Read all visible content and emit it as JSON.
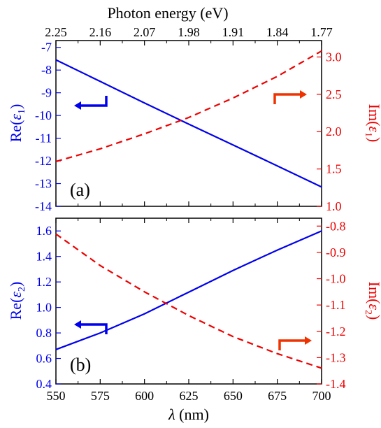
{
  "chart_data": [
    {
      "type": "line",
      "panel_label": "(a)",
      "xlabel": "",
      "top_axis": {
        "label": "Photon energy (eV)",
        "tick_labels": [
          "2.25",
          "2.16",
          "2.07",
          "1.98",
          "1.91",
          "1.84",
          "1.77"
        ]
      },
      "x_ticks": [
        550,
        575,
        600,
        625,
        650,
        675,
        700
      ],
      "xlim": [
        550,
        700
      ],
      "left_axis": {
        "label_base": "Re(",
        "label_symbol": "ε",
        "label_sub": "1",
        "label_close": ")",
        "color": "#0000ee",
        "ylim": [
          -14,
          -6.7
        ],
        "ticks": [
          -14,
          -13,
          -12,
          -11,
          -10,
          -9,
          -8,
          -7
        ],
        "tick_labels": [
          "-14",
          "-13",
          "-12",
          "-11",
          "-10",
          "-9",
          "-8",
          "-7"
        ]
      },
      "right_axis": {
        "label_base": "Im(",
        "label_symbol": "ε",
        "label_sub": "1",
        "label_close": ")",
        "color": "#ee0000",
        "ylim": [
          1.0,
          3.22
        ],
        "ticks": [
          1.0,
          1.5,
          2.0,
          2.5,
          3.0
        ],
        "tick_labels": [
          "1.0",
          "1.5",
          "2.0",
          "2.5",
          "3.0"
        ]
      },
      "series": [
        {
          "axis": "left",
          "color": "#0000ee",
          "style": "solid",
          "x": [
            550,
            575,
            600,
            625,
            650,
            675,
            700
          ],
          "y": [
            -7.55,
            -8.5,
            -9.45,
            -10.38,
            -11.3,
            -12.22,
            -13.15
          ]
        },
        {
          "axis": "right",
          "color": "#ee0000",
          "style": "dashed",
          "x": [
            550,
            575,
            600,
            625,
            650,
            675,
            700
          ],
          "y": [
            1.6,
            1.77,
            1.97,
            2.19,
            2.45,
            2.74,
            3.08
          ]
        }
      ],
      "arrows": [
        {
          "color": "#0000ee",
          "direction": "left"
        },
        {
          "color": "#ee3300",
          "direction": "right"
        }
      ]
    },
    {
      "type": "line",
      "panel_label": "(b)",
      "xlabel_symbol": "λ",
      "xlabel_unit": " (nm)",
      "x_ticks": [
        550,
        575,
        600,
        625,
        650,
        675,
        700
      ],
      "x_tick_labels": [
        "550",
        "575",
        "600",
        "625",
        "650",
        "675",
        "700"
      ],
      "xlim": [
        550,
        700
      ],
      "left_axis": {
        "label_base": "Re(",
        "label_symbol": "ε",
        "label_sub": "2",
        "label_close": ")",
        "color": "#0000ee",
        "ylim": [
          0.4,
          1.7
        ],
        "ticks": [
          0.4,
          0.6,
          0.8,
          1.0,
          1.2,
          1.4,
          1.6
        ],
        "tick_labels": [
          "0.4",
          "0.6",
          "0.8",
          "1.0",
          "1.2",
          "1.4",
          "1.6"
        ]
      },
      "right_axis": {
        "label_base": "Im(",
        "label_symbol": "ε",
        "label_sub": "2",
        "label_close": ")",
        "color": "#ee0000",
        "ylim": [
          -1.4,
          -0.77
        ],
        "ticks": [
          -1.4,
          -1.3,
          -1.2,
          -1.1,
          -1.0,
          -0.9,
          -0.8
        ],
        "tick_labels": [
          "-1.4",
          "-1.3",
          "-1.2",
          "-1.1",
          "-1.0",
          "-0.9",
          "-0.8"
        ]
      },
      "series": [
        {
          "axis": "left",
          "color": "#0000ee",
          "style": "solid",
          "x": [
            550,
            575,
            600,
            625,
            650,
            675,
            700
          ],
          "y": [
            0.67,
            0.8,
            0.95,
            1.12,
            1.29,
            1.45,
            1.6
          ]
        },
        {
          "axis": "right",
          "color": "#ee0000",
          "style": "dashed",
          "x": [
            550,
            575,
            600,
            625,
            650,
            675,
            700
          ],
          "y": [
            -0.83,
            -0.95,
            -1.05,
            -1.14,
            -1.22,
            -1.285,
            -1.34
          ]
        }
      ],
      "arrows": [
        {
          "color": "#0000ee",
          "direction": "left"
        },
        {
          "color": "#ee3300",
          "direction": "right"
        }
      ]
    }
  ]
}
